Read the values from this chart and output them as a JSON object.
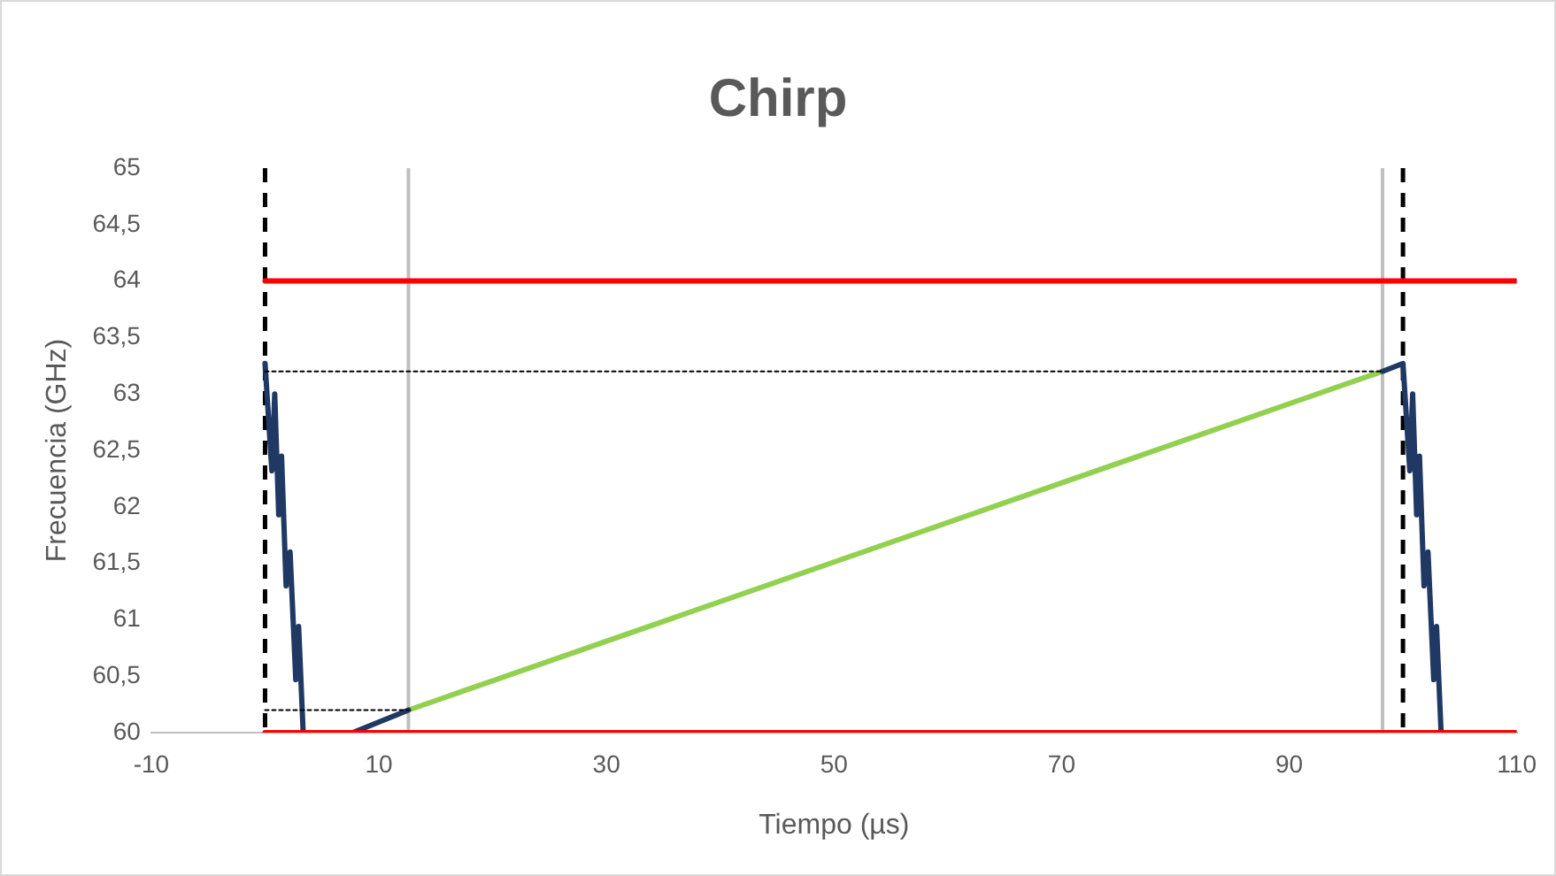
{
  "chart_data": {
    "type": "line",
    "title": "Chirp",
    "xlabel": "Tiempo (µs)",
    "ylabel": "Frecuencia (GHz)",
    "xlim": [
      -10,
      110
    ],
    "xticks": [
      -10,
      10,
      30,
      50,
      70,
      90,
      110
    ],
    "ylim": [
      60,
      65
    ],
    "yticks": [
      60,
      {
        "value": 60.5,
        "label": "60,5"
      },
      61,
      {
        "value": 61.5,
        "label": "61,5"
      },
      62,
      {
        "value": 62.5,
        "label": "62,5"
      },
      63,
      {
        "value": 63.5,
        "label": "63,5"
      },
      64,
      {
        "value": 64.5,
        "label": "64,5"
      },
      65
    ],
    "grid": false,
    "legend": false,
    "marker": "none",
    "series": [
      {
        "color": "#ff0000",
        "line_style": "solid",
        "x": [
          0,
          110
        ],
        "values": [
          64,
          64
        ]
      },
      {
        "color": "#ff0000",
        "line_style": "solid",
        "x": [
          0,
          110
        ],
        "values": [
          60,
          60
        ]
      },
      {
        "color": "#000000",
        "line_style": "dotted",
        "x": [
          0,
          98.2
        ],
        "values": [
          63.2,
          63.2
        ]
      },
      {
        "color": "#000000",
        "line_style": "dotted",
        "x": [
          0,
          12.6
        ],
        "values": [
          60.2,
          60.2
        ]
      },
      {
        "color": "#1f3864",
        "line_style": "solid",
        "x": [
          0,
          0.6,
          0.85,
          1.2,
          1.45,
          1.85,
          2.2,
          2.7,
          2.95,
          3.35,
          5,
          7.7,
          12.6,
          50,
          98.2,
          100,
          100.6,
          100.85,
          101.2,
          101.45,
          101.85,
          102.2,
          102.7,
          102.95,
          103.35
        ],
        "values": [
          63.27,
          62.32,
          63.0,
          61.93,
          62.45,
          61.3,
          61.6,
          60.47,
          60.94,
          60.0,
          null,
          60.0,
          60.2,
          null,
          63.2,
          63.27,
          62.32,
          63.0,
          61.93,
          62.45,
          61.3,
          61.6,
          60.47,
          60.94,
          60.0
        ]
      },
      {
        "color": "#92d050",
        "line_style": "solid",
        "x": [
          12.6,
          98.2
        ],
        "values": [
          60.2,
          63.2
        ]
      }
    ],
    "ref_lines": [
      {
        "axis": "x",
        "value": 0,
        "color": "#000000",
        "line_style": "dashed"
      },
      {
        "axis": "x",
        "value": 100,
        "color": "#000000",
        "line_style": "dashed"
      },
      {
        "axis": "x",
        "value": 12.6,
        "color": "#bfbfbf",
        "line_style": "solid"
      },
      {
        "axis": "x",
        "value": 98.2,
        "color": "#bfbfbf",
        "line_style": "solid"
      }
    ]
  }
}
